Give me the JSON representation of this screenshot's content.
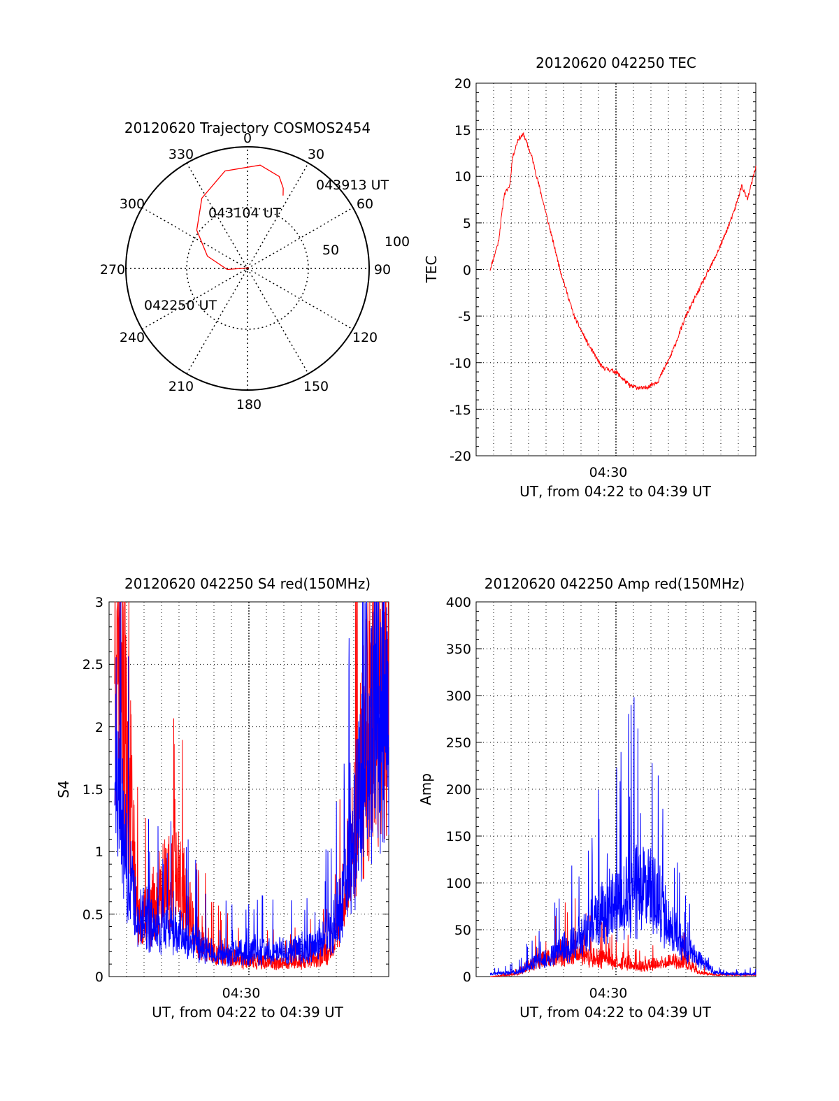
{
  "colors": {
    "red": "#ff0000",
    "blue": "#0000ff",
    "axis": "#000000"
  },
  "chart_data": [
    {
      "id": "trajectory",
      "type": "polar",
      "title": "20120620 Trajectory COSMOS2454",
      "azimuth_labels": [
        "0",
        "30",
        "60",
        "90",
        "120",
        "150",
        "180",
        "210",
        "240",
        "270",
        "300",
        "330"
      ],
      "radius_labels": [
        "50",
        "100"
      ],
      "elevation_circles": [
        50
      ],
      "annotations": [
        "043913 UT",
        "043104 UT",
        "042250 UT"
      ],
      "series": [
        {
          "color": "red",
          "points": [
            [
              247,
              91
            ],
            [
              267,
              75
            ],
            [
              287,
              59
            ],
            [
              307,
              43
            ],
            [
              327,
              28
            ],
            [
              347,
              16
            ],
            [
              7,
              13
            ],
            [
              19,
              18
            ],
            [
              24,
              25
            ],
            [
              26,
              30
            ]
          ]
        }
      ]
    },
    {
      "id": "tec",
      "type": "line",
      "title": "20120620 042250 TEC",
      "xlabel": "UT, from 04:22 to 04:39 UT",
      "ylabel": "TEC",
      "xtick_label": "04:30",
      "yticks": [
        "20",
        "15",
        "10",
        "5",
        "0",
        "-5",
        "-10",
        "-15",
        "-20"
      ],
      "ylim": [
        -20,
        20
      ],
      "series": [
        {
          "color": "red",
          "style": "noisy",
          "points": [
            [
              0.05,
              0
            ],
            [
              0.08,
              3
            ],
            [
              0.1,
              8
            ],
            [
              0.12,
              9
            ],
            [
              0.13,
              12
            ],
            [
              0.15,
              14
            ],
            [
              0.17,
              14.5
            ],
            [
              0.2,
              12
            ],
            [
              0.25,
              6
            ],
            [
              0.3,
              0
            ],
            [
              0.35,
              -5
            ],
            [
              0.4,
              -8
            ],
            [
              0.45,
              -10.5
            ],
            [
              0.5,
              -11
            ],
            [
              0.55,
              -12.5
            ],
            [
              0.6,
              -12.8
            ],
            [
              0.65,
              -12
            ],
            [
              0.7,
              -9
            ],
            [
              0.75,
              -5
            ],
            [
              0.8,
              -2
            ],
            [
              0.85,
              1
            ],
            [
              0.88,
              3
            ],
            [
              0.92,
              6
            ],
            [
              0.95,
              9
            ],
            [
              0.97,
              7.5
            ],
            [
              1.0,
              11
            ]
          ]
        }
      ]
    },
    {
      "id": "s4",
      "type": "line",
      "title": "20120620 042250 S4 red(150MHz)",
      "xlabel": "UT, from 04:22 to 04:39 UT",
      "ylabel": "S4",
      "xtick_label": "04:30",
      "yticks": [
        "3",
        "2.5",
        "2",
        "1.5",
        "1",
        "0.5",
        "0"
      ],
      "ylim": [
        0,
        3
      ],
      "series": [
        {
          "color": "red",
          "style": "spiky",
          "points": [
            [
              0.02,
              3
            ],
            [
              0.04,
              3
            ],
            [
              0.06,
              2
            ],
            [
              0.08,
              1.5
            ],
            [
              0.1,
              0.5
            ],
            [
              0.12,
              0.45
            ],
            [
              0.15,
              0.6
            ],
            [
              0.2,
              0.8
            ],
            [
              0.25,
              0.9
            ],
            [
              0.28,
              0.6
            ],
            [
              0.32,
              0.3
            ],
            [
              0.38,
              0.2
            ],
            [
              0.45,
              0.15
            ],
            [
              0.55,
              0.12
            ],
            [
              0.65,
              0.12
            ],
            [
              0.72,
              0.15
            ],
            [
              0.78,
              0.2
            ],
            [
              0.82,
              0.4
            ],
            [
              0.86,
              1
            ],
            [
              0.9,
              1.8
            ],
            [
              0.95,
              2.5
            ],
            [
              1.0,
              2.8
            ]
          ]
        },
        {
          "color": "blue",
          "style": "spiky",
          "points": [
            [
              0.02,
              2
            ],
            [
              0.06,
              1
            ],
            [
              0.09,
              0.6
            ],
            [
              0.12,
              0.5
            ],
            [
              0.16,
              0.45
            ],
            [
              0.22,
              0.4
            ],
            [
              0.28,
              0.35
            ],
            [
              0.35,
              0.22
            ],
            [
              0.42,
              0.2
            ],
            [
              0.5,
              0.2
            ],
            [
              0.58,
              0.22
            ],
            [
              0.66,
              0.22
            ],
            [
              0.74,
              0.25
            ],
            [
              0.8,
              0.4
            ],
            [
              0.85,
              0.8
            ],
            [
              0.9,
              1.6
            ],
            [
              0.95,
              2.2
            ],
            [
              1.0,
              2.4
            ]
          ]
        }
      ]
    },
    {
      "id": "amp",
      "type": "line",
      "title": "20120620 042250 Amp red(150MHz)",
      "xlabel": "UT, from 04:22 to 04:39 UT",
      "ylabel": "Amp",
      "xtick_label": "04:30",
      "yticks": [
        "400",
        "350",
        "300",
        "250",
        "200",
        "150",
        "100",
        "50",
        "0"
      ],
      "ylim": [
        0,
        400
      ],
      "series": [
        {
          "color": "red",
          "style": "spiky",
          "points": [
            [
              0.05,
              0
            ],
            [
              0.15,
              3
            ],
            [
              0.2,
              15
            ],
            [
              0.25,
              20
            ],
            [
              0.3,
              25
            ],
            [
              0.35,
              30
            ],
            [
              0.4,
              22
            ],
            [
              0.45,
              20
            ],
            [
              0.5,
              18
            ],
            [
              0.55,
              15
            ],
            [
              0.6,
              12
            ],
            [
              0.65,
              15
            ],
            [
              0.7,
              18
            ],
            [
              0.75,
              15
            ],
            [
              0.8,
              5
            ],
            [
              0.85,
              2
            ],
            [
              1.0,
              2
            ]
          ]
        },
        {
          "color": "blue",
          "style": "spiky",
          "points": [
            [
              0.05,
              3
            ],
            [
              0.15,
              5
            ],
            [
              0.2,
              15
            ],
            [
              0.25,
              20
            ],
            [
              0.3,
              30
            ],
            [
              0.35,
              40
            ],
            [
              0.4,
              55
            ],
            [
              0.45,
              70
            ],
            [
              0.5,
              80
            ],
            [
              0.55,
              95
            ],
            [
              0.6,
              100
            ],
            [
              0.65,
              90
            ],
            [
              0.7,
              55
            ],
            [
              0.75,
              30
            ],
            [
              0.8,
              20
            ],
            [
              0.85,
              5
            ],
            [
              0.9,
              3
            ],
            [
              1.0,
              3
            ]
          ]
        }
      ]
    }
  ]
}
